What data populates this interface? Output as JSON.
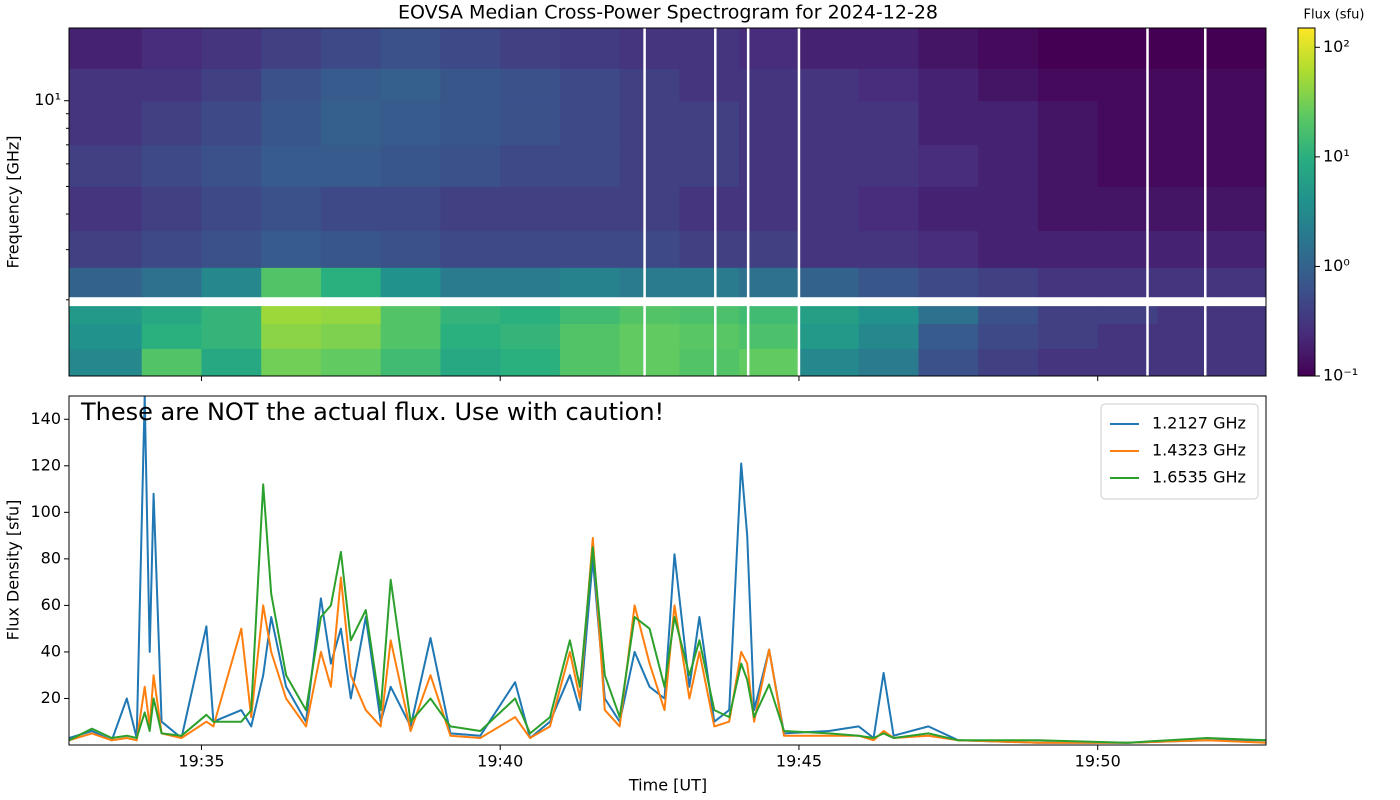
{
  "chart_data": [
    {
      "type": "heatmap",
      "title": "EOVSA Median Cross-Power Spectrogram for 2024-12-28",
      "ylabel": "Frequency [GHz]",
      "yscale": "log",
      "colormap": "viridis",
      "colorbar_label": "Flux (sfu)",
      "clim": [
        0.1,
        150
      ],
      "cticks": [
        {
          "value": 0.1,
          "label": "10⁻¹"
        },
        {
          "value": 1,
          "label": "10⁰"
        },
        {
          "value": 10,
          "label": "10¹"
        },
        {
          "value": 100,
          "label": "10²"
        }
      ],
      "xlim": [
        "19:32:47",
        "19:52:49"
      ],
      "xticks": [
        "19:35",
        "19:40",
        "19:45",
        "19:50"
      ],
      "ylim": [
        1.08,
        18
      ],
      "yticks": [
        {
          "value": 10,
          "label": "10¹"
        }
      ],
      "yminorticks": [
        2,
        3,
        4,
        5,
        6,
        7,
        8,
        9
      ],
      "time_edges": [
        "19:32:47",
        "19:34",
        "19:35",
        "19:36",
        "19:37",
        "19:38",
        "19:39",
        "19:40",
        "19:41",
        "19:42",
        "19:43",
        "19:44",
        "19:45",
        "19:46",
        "19:47",
        "19:48",
        "19:49",
        "19:50",
        "19:51",
        "19:52",
        "19:52:49"
      ],
      "frequency_edges": [
        1.08,
        1.35,
        1.65,
        1.9,
        2.05,
        2.6,
        3.5,
        5,
        7,
        10,
        13,
        18
      ],
      "gap_times": [
        "19:42:25",
        "19:43:36",
        "19:44:09",
        "19:45:00",
        "19:50:50",
        "19:51:48"
      ],
      "values": [
        [
          3,
          20,
          8,
          30,
          25,
          15,
          8,
          10,
          20,
          25,
          20,
          25,
          3,
          2,
          0.6,
          0.4,
          0.3,
          0.3,
          0.3,
          0.3
        ],
        [
          4,
          10,
          12,
          40,
          35,
          20,
          10,
          12,
          20,
          25,
          22,
          18,
          5,
          3,
          0.8,
          0.5,
          0.4,
          0.3,
          0.3,
          0.3
        ],
        [
          5,
          8,
          12,
          50,
          45,
          20,
          12,
          10,
          15,
          20,
          18,
          15,
          6,
          4,
          1.5,
          0.6,
          0.4,
          0.4,
          0.3,
          0.3
        ],
        [
          null,
          null,
          null,
          null,
          null,
          null,
          null,
          null,
          null,
          null,
          null,
          null,
          null,
          null,
          null,
          null,
          null,
          null,
          null,
          null
        ],
        [
          1,
          1.5,
          3,
          20,
          10,
          4,
          2,
          2,
          2.5,
          2,
          2,
          1.5,
          1,
          0.7,
          0.5,
          0.4,
          0.3,
          0.3,
          0.3,
          0.3
        ],
        [
          0.4,
          0.5,
          0.6,
          0.8,
          0.7,
          0.6,
          0.5,
          0.5,
          0.5,
          0.5,
          0.4,
          0.4,
          0.3,
          0.3,
          0.25,
          0.2,
          0.2,
          0.2,
          0.2,
          0.2
        ],
        [
          0.3,
          0.4,
          0.5,
          0.6,
          0.5,
          0.5,
          0.4,
          0.4,
          0.4,
          0.4,
          0.3,
          0.3,
          0.3,
          0.25,
          0.2,
          0.2,
          0.15,
          0.15,
          0.15,
          0.15
        ],
        [
          0.4,
          0.5,
          0.6,
          0.8,
          0.8,
          0.7,
          0.6,
          0.5,
          0.5,
          0.4,
          0.4,
          0.3,
          0.3,
          0.3,
          0.25,
          0.2,
          0.15,
          0.12,
          0.12,
          0.12
        ],
        [
          0.3,
          0.4,
          0.5,
          0.7,
          0.9,
          0.8,
          0.7,
          0.6,
          0.5,
          0.4,
          0.4,
          0.3,
          0.3,
          0.3,
          0.2,
          0.2,
          0.15,
          0.12,
          0.12,
          0.12
        ],
        [
          0.3,
          0.3,
          0.4,
          0.6,
          0.8,
          0.9,
          0.7,
          0.6,
          0.5,
          0.4,
          0.3,
          0.3,
          0.3,
          0.25,
          0.2,
          0.15,
          0.12,
          0.12,
          0.12,
          0.12
        ],
        [
          0.2,
          0.25,
          0.3,
          0.4,
          0.5,
          0.6,
          0.5,
          0.4,
          0.35,
          0.3,
          0.3,
          0.25,
          0.2,
          0.2,
          0.15,
          0.12,
          0.1,
          0.1,
          0.1,
          0.1
        ]
      ]
    },
    {
      "type": "line",
      "annotation": "These are NOT the actual flux. Use with caution!",
      "xlabel": "Time [UT]",
      "ylabel": "Flux Density [sfu]",
      "legend": "upper right",
      "xlim": [
        "19:32:47",
        "19:52:49"
      ],
      "xticks": [
        "19:35",
        "19:40",
        "19:45",
        "19:50"
      ],
      "ylim": [
        0,
        150
      ],
      "yticks": [
        20,
        40,
        60,
        80,
        100,
        120,
        140
      ],
      "x": [
        "19:32:47",
        "19:33:10",
        "19:33:30",
        "19:33:45",
        "19:33:55",
        "19:34:03",
        "19:34:08",
        "19:34:12",
        "19:34:20",
        "19:34:40",
        "19:35:05",
        "19:35:12",
        "19:35:40",
        "19:35:50",
        "19:36:02",
        "19:36:10",
        "19:36:25",
        "19:36:45",
        "19:37:00",
        "19:37:10",
        "19:37:20",
        "19:37:30",
        "19:37:45",
        "19:38:00",
        "19:38:10",
        "19:38:30",
        "19:38:50",
        "19:39:10",
        "19:39:40",
        "19:40:15",
        "19:40:30",
        "19:40:50",
        "19:41:10",
        "19:41:20",
        "19:41:33",
        "19:41:45",
        "19:42:00",
        "19:42:15",
        "19:42:30",
        "19:42:45",
        "19:42:55",
        "19:43:10",
        "19:43:20",
        "19:43:35",
        "19:43:50",
        "19:44:02",
        "19:44:08",
        "19:44:15",
        "19:44:30",
        "19:44:45",
        "19:45:30",
        "19:46:00",
        "19:46:15",
        "19:46:25",
        "19:46:35",
        "19:47:10",
        "19:47:40",
        "19:49:00",
        "19:50:30",
        "19:51:50",
        "19:52:49"
      ],
      "series": [
        {
          "name": "1.2127 GHz",
          "color": "#1f77b4",
          "values": [
            3,
            6,
            2,
            20,
            3,
            150,
            40,
            108,
            10,
            3,
            51,
            10,
            15,
            8,
            30,
            55,
            25,
            10,
            63,
            35,
            50,
            20,
            55,
            10,
            25,
            8,
            46,
            5,
            4,
            27,
            3,
            10,
            30,
            15,
            80,
            20,
            10,
            40,
            25,
            20,
            82,
            25,
            55,
            10,
            15,
            121,
            90,
            15,
            41,
            5,
            6,
            8,
            3,
            31,
            4,
            8,
            2,
            1,
            1,
            2,
            2
          ]
        },
        {
          "name": "1.4323 GHz",
          "color": "#ff7f0e",
          "values": [
            2,
            5,
            2,
            3,
            2,
            25,
            8,
            30,
            5,
            3,
            10,
            8,
            50,
            12,
            60,
            40,
            20,
            8,
            40,
            25,
            72,
            30,
            15,
            8,
            45,
            6,
            30,
            4,
            3,
            12,
            3,
            8,
            40,
            20,
            89,
            15,
            8,
            60,
            35,
            15,
            60,
            20,
            40,
            8,
            10,
            40,
            35,
            10,
            41,
            4,
            4,
            4,
            2,
            6,
            3,
            4,
            2,
            1,
            1,
            2,
            1
          ]
        },
        {
          "name": "1.6535 GHz",
          "color": "#2ca02c",
          "values": [
            2,
            7,
            3,
            4,
            3,
            14,
            6,
            20,
            5,
            4,
            13,
            10,
            10,
            15,
            112,
            65,
            30,
            15,
            55,
            60,
            83,
            45,
            58,
            15,
            71,
            10,
            20,
            8,
            6,
            20,
            5,
            12,
            45,
            25,
            85,
            30,
            12,
            55,
            50,
            25,
            55,
            30,
            45,
            15,
            12,
            35,
            28,
            12,
            26,
            6,
            5,
            4,
            3,
            5,
            3,
            5,
            2,
            2,
            1,
            3,
            2
          ]
        }
      ]
    }
  ]
}
